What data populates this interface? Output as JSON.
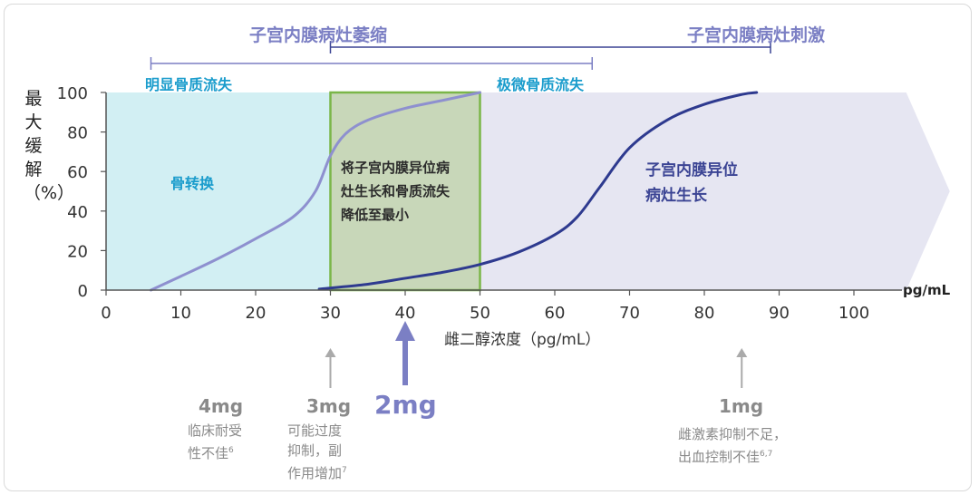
{
  "chart_data": {
    "type": "line",
    "xlabel": "雌二醇浓度（pg/mL）",
    "ylabel": "最大缓解（%）",
    "x_unit": "pg/mL",
    "xlim": [
      0,
      100
    ],
    "ylim": [
      0,
      100
    ],
    "x_ticks": [
      0,
      10,
      20,
      30,
      40,
      50,
      60,
      70,
      80,
      90,
      100
    ],
    "y_ticks": [
      0,
      20,
      40,
      60,
      80,
      100
    ],
    "series": [
      {
        "color": "#8e90cf",
        "x": [
          6,
          10,
          15,
          20,
          25,
          28,
          30,
          32,
          35,
          40,
          45,
          50
        ],
        "y": [
          0,
          7,
          16,
          26,
          37,
          50,
          68,
          79,
          86,
          92,
          96,
          100
        ]
      },
      {
        "color": "#2e3a8f",
        "x": [
          28.5,
          35,
          40,
          45,
          50,
          55,
          60,
          63,
          66,
          70,
          75,
          80,
          85,
          87
        ],
        "y": [
          0.5,
          3,
          6,
          9,
          13,
          19,
          28,
          37,
          52,
          72,
          86,
          94,
          99,
          100
        ]
      }
    ],
    "zones": [
      {
        "x0": 0,
        "x1": 30,
        "label": "骨转换",
        "color": "#d2eff3",
        "text_color": "#1a9ccc"
      },
      {
        "x0": 30,
        "x1": 50,
        "label_lines": [
          "将子宫内膜异位病",
          "灶生长和骨质流失",
          "降低至最小"
        ],
        "color": "#c8d7b9",
        "border": "#7ab648",
        "text_color": "#2b2b2b"
      },
      {
        "x0": 50,
        "x1": 107,
        "label_lines": [
          "子宫内膜异位",
          "病灶生长"
        ],
        "color": "#e6e6f2",
        "text_color": "#3b4494"
      }
    ],
    "top_labels": {
      "atrophy": "子宫内膜病灶萎缩",
      "stimulation": "子宫内膜病灶刺激",
      "obvious_loss": "明显骨质流失",
      "minimal_loss": "极微骨质流失",
      "atrophy_range": [
        30,
        65
      ],
      "bone_range": [
        6,
        90
      ]
    },
    "doses": [
      {
        "x": 15,
        "label": "4mg",
        "notes": [
          "临床耐受",
          "性不佳"
        ],
        "sup": "6",
        "arrow": false
      },
      {
        "x": 30,
        "label": "3mg",
        "notes": [
          "可能过度",
          "抑制，副",
          "作用增加"
        ],
        "sup": "7",
        "arrow": true
      },
      {
        "x": 40,
        "label": "2mg",
        "notes": [],
        "sup": "",
        "arrow": true,
        "highlight": true
      },
      {
        "x": 85,
        "label": "1mg",
        "notes": [
          "雌激素抑制不足，",
          "出血控制不佳"
        ],
        "sup": "6,7",
        "arrow": true
      }
    ]
  }
}
